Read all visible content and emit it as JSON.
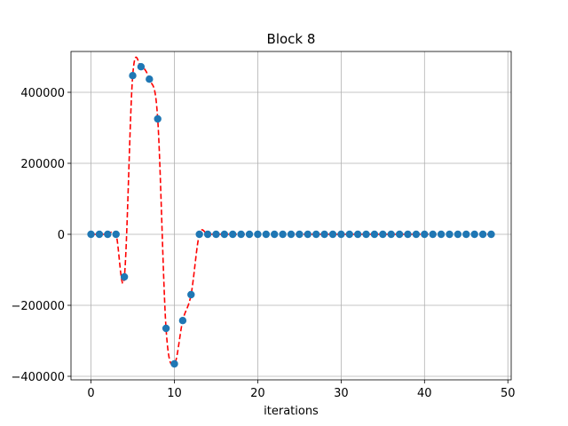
{
  "chart_data": {
    "type": "scatter",
    "title": "Block 8",
    "xlabel": "iterations",
    "ylabel": "",
    "xlim": [
      -2.4,
      50.4
    ],
    "ylim": [
      -410000,
      515000
    ],
    "x_ticks": [
      0,
      10,
      20,
      30,
      40,
      50
    ],
    "y_ticks": [
      -400000,
      -200000,
      0,
      200000,
      400000
    ],
    "x_tick_labels": [
      "0",
      "10",
      "20",
      "30",
      "40",
      "50"
    ],
    "y_tick_labels": [
      "−400000",
      "−200000",
      "0",
      "200000",
      "400000"
    ],
    "grid": true,
    "legend": "none",
    "series": [
      {
        "style": "markers",
        "color": "#1f77b4",
        "x": [
          0,
          1,
          2,
          3,
          4,
          5,
          6,
          7,
          8,
          9,
          10,
          11,
          12,
          13,
          14,
          15,
          16,
          17,
          18,
          19,
          20,
          21,
          22,
          23,
          24,
          25,
          26,
          27,
          28,
          29,
          30,
          31,
          32,
          33,
          34,
          35,
          36,
          37,
          38,
          39,
          40,
          41,
          42,
          43,
          44,
          45,
          46,
          47,
          48
        ],
        "y": [
          0,
          0,
          0,
          0,
          -120000,
          447000,
          472000,
          437000,
          325000,
          -265000,
          -365000,
          -243000,
          -170000,
          0,
          0,
          0,
          0,
          0,
          0,
          0,
          0,
          0,
          0,
          0,
          0,
          0,
          0,
          0,
          0,
          0,
          0,
          0,
          0,
          0,
          0,
          0,
          0,
          0,
          0,
          0,
          0,
          0,
          0,
          0,
          0,
          0,
          0,
          0,
          0
        ]
      },
      {
        "style": "dashed-smooth-line",
        "color": "#ff0000",
        "x": [
          0,
          1,
          2,
          3,
          4,
          5,
          6,
          7,
          8,
          9,
          10,
          11,
          12,
          13,
          14,
          15,
          16,
          17,
          18,
          19,
          20,
          21,
          22,
          23,
          24,
          25,
          26,
          27,
          28,
          29,
          30,
          31,
          32,
          33,
          34,
          35,
          36,
          37,
          38,
          39,
          40,
          41,
          42,
          43,
          44,
          45,
          46,
          47,
          48
        ],
        "y": [
          0,
          0,
          0,
          0,
          -120000,
          447000,
          472000,
          437000,
          325000,
          -265000,
          -365000,
          -243000,
          -170000,
          0,
          0,
          0,
          0,
          0,
          0,
          0,
          0,
          0,
          0,
          0,
          0,
          0,
          0,
          0,
          0,
          0,
          0,
          0,
          0,
          0,
          0,
          0,
          0,
          0,
          0,
          0,
          0,
          0,
          0,
          0,
          0,
          0,
          0,
          0,
          0
        ]
      }
    ]
  }
}
